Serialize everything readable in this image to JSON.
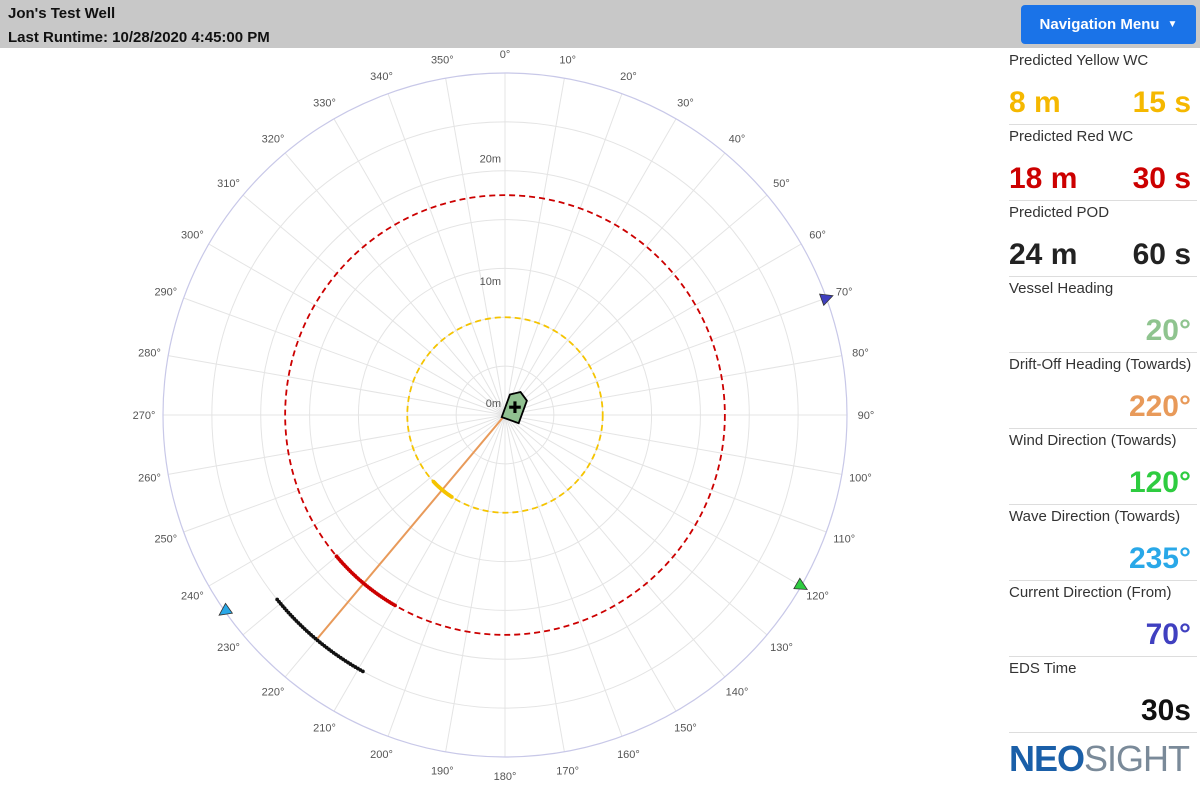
{
  "header": {
    "well_name": "Jon's Test Well",
    "runtime": "Last Runtime: 10/28/2020 4:45:00 PM",
    "nav_label": "Navigation Menu"
  },
  "colors": {
    "yellow": "#f5c400",
    "red": "#cc0000",
    "black": "#111111",
    "vessel_heading": "#8fc48f",
    "drift": "#e89a5a",
    "wind": "#2ecc40",
    "wave": "#29a8e8",
    "current": "#4040c0",
    "vessel_fill": "#90c090"
  },
  "metrics": [
    {
      "label": "Predicted Yellow WC",
      "left": "8 m",
      "right": "15 s",
      "color": "#f5b800"
    },
    {
      "label": "Predicted Red WC",
      "left": "18 m",
      "right": "30 s",
      "color": "#cc0000"
    },
    {
      "label": "Predicted POD",
      "left": "24 m",
      "right": "60 s",
      "color": "#222222"
    },
    {
      "label": "Vessel Heading",
      "right": "20°",
      "color": "#8fc48f"
    },
    {
      "label": "Drift-Off Heading (Towards)",
      "right": "220°",
      "color": "#e89a5a"
    },
    {
      "label": "Wind Direction (Towards)",
      "right": "120°",
      "color": "#2ecc40"
    },
    {
      "label": "Wave Direction (Towards)",
      "right": "235°",
      "color": "#29a8e8"
    },
    {
      "label": "Current Direction (From)",
      "right": "70°",
      "color": "#4040c0"
    },
    {
      "label": "EDS Time",
      "right": "30s",
      "color": "#111111"
    }
  ],
  "logo": {
    "left_text": "NEO",
    "right_text": "SIGHT"
  },
  "chart_data": {
    "type": "scatter",
    "coordinate_system": "polar",
    "angle_ticks": [
      "0°",
      "10°",
      "20°",
      "30°",
      "40°",
      "50°",
      "60°",
      "70°",
      "80°",
      "90°",
      "100°",
      "110°",
      "120°",
      "130°",
      "140°",
      "150°",
      "160°",
      "170°",
      "180°",
      "190°",
      "200°",
      "210°",
      "220°",
      "230°",
      "240°",
      "250°",
      "260°",
      "270°",
      "280°",
      "290°",
      "300°",
      "310°",
      "320°",
      "330°",
      "340°",
      "350°"
    ],
    "radial_ticks": [
      {
        "value": 0,
        "label": "0m"
      },
      {
        "value": 10,
        "label": "10m"
      },
      {
        "value": 20,
        "label": "20m"
      }
    ],
    "r_max": 28,
    "rings": [
      {
        "name": "yellow-watch-circle",
        "radius": 8,
        "color": "#f5c400"
      },
      {
        "name": "red-watch-circle",
        "radius": 18,
        "color": "#cc0000"
      }
    ],
    "drift_line": {
      "bearing": 220,
      "length": 24,
      "color": "#e89a5a"
    },
    "series": [
      {
        "color": "#f5c400",
        "arc": {
          "center_bearing": 220,
          "radius": 8,
          "span": 14,
          "count": 20
        }
      },
      {
        "color": "#cc0000",
        "arc": {
          "center_bearing": 220,
          "radius": 18,
          "span": 20,
          "count": 35
        }
      },
      {
        "color": "#111111",
        "arc": {
          "center_bearing": 220,
          "radius": 24,
          "span": 22,
          "count": 40
        }
      }
    ],
    "markers": [
      {
        "name": "current-direction-marker",
        "bearing": 70,
        "color": "#4040c0"
      },
      {
        "name": "wind-direction-marker",
        "bearing": 120,
        "color": "#2ecc40"
      },
      {
        "name": "wave-direction-marker",
        "bearing": 235,
        "color": "#29a8e8"
      }
    ],
    "vessel": {
      "heading": 20,
      "color": "#90c090"
    }
  }
}
